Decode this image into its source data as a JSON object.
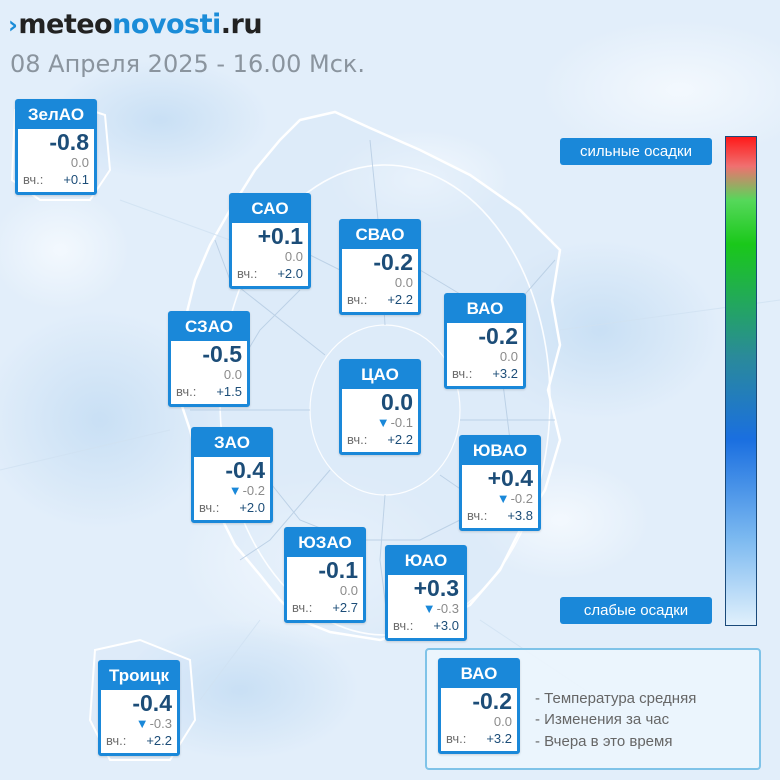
{
  "brand": {
    "mark": "›",
    "part1": "meteo",
    "part2": "novosti",
    "part3": ".ru"
  },
  "datetime": "08 Апреля 2025 - 16.00 Мск.",
  "stations": [
    {
      "id": "zelao",
      "name": "ЗелАО",
      "temp": "-0.8",
      "change": "0.0",
      "change_trend": "none",
      "yesterday_label": "вч.:",
      "yesterday": "+0.1"
    },
    {
      "id": "sao",
      "name": "САО",
      "temp": "+0.1",
      "change": "0.0",
      "change_trend": "none",
      "yesterday_label": "вч.:",
      "yesterday": "+2.0"
    },
    {
      "id": "svao",
      "name": "СВАО",
      "temp": "-0.2",
      "change": "0.0",
      "change_trend": "none",
      "yesterday_label": "вч.:",
      "yesterday": "+2.2"
    },
    {
      "id": "vao",
      "name": "ВАО",
      "temp": "-0.2",
      "change": "0.0",
      "change_trend": "none",
      "yesterday_label": "вч.:",
      "yesterday": "+3.2"
    },
    {
      "id": "szao",
      "name": "СЗАО",
      "temp": "-0.5",
      "change": "0.0",
      "change_trend": "none",
      "yesterday_label": "вч.:",
      "yesterday": "+1.5"
    },
    {
      "id": "cao",
      "name": "ЦАО",
      "temp": "0.0",
      "change": "-0.1",
      "change_trend": "down",
      "yesterday_label": "вч.:",
      "yesterday": "+2.2"
    },
    {
      "id": "zao",
      "name": "ЗАО",
      "temp": "-0.4",
      "change": "-0.2",
      "change_trend": "down",
      "yesterday_label": "вч.:",
      "yesterday": "+2.0"
    },
    {
      "id": "yuvao",
      "name": "ЮВАО",
      "temp": "+0.4",
      "change": "-0.2",
      "change_trend": "down",
      "yesterday_label": "вч.:",
      "yesterday": "+3.8"
    },
    {
      "id": "yuzao",
      "name": "ЮЗАО",
      "temp": "-0.1",
      "change": "0.0",
      "change_trend": "none",
      "yesterday_label": "вч.:",
      "yesterday": "+2.7"
    },
    {
      "id": "yuao",
      "name": "ЮАО",
      "temp": "+0.3",
      "change": "-0.3",
      "change_trend": "down",
      "yesterday_label": "вч.:",
      "yesterday": "+3.0"
    },
    {
      "id": "troitsk",
      "name": "Троицк",
      "temp": "-0.4",
      "change": "-0.3",
      "change_trend": "down",
      "yesterday_label": "вч.:",
      "yesterday": "+2.2"
    }
  ],
  "scale": {
    "top_label": "сильные осадки",
    "bottom_label": "слабые осадки"
  },
  "legend": {
    "sample": {
      "name": "ВАО",
      "temp": "-0.2",
      "change": "0.0",
      "change_trend": "none",
      "yesterday_label": "вч.:",
      "yesterday": "+3.2"
    },
    "items": [
      "- Температура средняя",
      "- Изменения за час",
      "- Вчера в это время"
    ]
  },
  "colors": {
    "accent": "#1a88d9",
    "temp_text": "#1c4d78",
    "background": "#e4f0fb"
  }
}
